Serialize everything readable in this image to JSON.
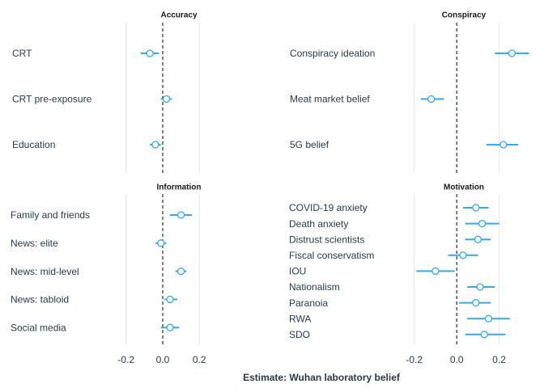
{
  "chart_data": {
    "type": "scatter",
    "xlabel": "Estimate: Wuhan laboratory belief",
    "ylabel": "",
    "x_ticks": [
      -0.2,
      0.0,
      0.2
    ],
    "x_tick_labels": [
      "-0.2",
      "0.0",
      "0.2"
    ],
    "grid": true,
    "legend": "none",
    "color": "#33aaee",
    "panels": [
      {
        "title": "Accuracy",
        "xlim": [
          -0.42,
          0.42
        ],
        "rows": [
          {
            "label": "CRT",
            "estimate": -0.07,
            "lower": -0.12,
            "upper": -0.02
          },
          {
            "label": "CRT pre-exposure",
            "estimate": 0.02,
            "lower": -0.01,
            "upper": 0.05
          },
          {
            "label": "Education",
            "estimate": -0.04,
            "lower": -0.07,
            "upper": -0.01
          }
        ]
      },
      {
        "title": "Conspiracy",
        "xlim": [
          -0.42,
          0.35
        ],
        "rows": [
          {
            "label": "Conspiracy ideation",
            "estimate": 0.26,
            "lower": 0.18,
            "upper": 0.34
          },
          {
            "label": "Meat market belief",
            "estimate": -0.12,
            "lower": -0.17,
            "upper": -0.06
          },
          {
            "label": "5G belief",
            "estimate": 0.22,
            "lower": 0.14,
            "upper": 0.29
          }
        ]
      },
      {
        "title": "Information",
        "xlim": [
          -0.42,
          0.42
        ],
        "rows": [
          {
            "label": "Family and friends",
            "estimate": 0.1,
            "lower": 0.04,
            "upper": 0.16
          },
          {
            "label": "News: elite",
            "estimate": -0.01,
            "lower": -0.04,
            "upper": 0.02
          },
          {
            "label": "News: mid-level",
            "estimate": 0.1,
            "lower": 0.07,
            "upper": 0.13
          },
          {
            "label": "News: tabloid",
            "estimate": 0.04,
            "lower": 0.01,
            "upper": 0.08
          },
          {
            "label": "Social media",
            "estimate": 0.04,
            "lower": -0.01,
            "upper": 0.09
          }
        ]
      },
      {
        "title": "Motivation",
        "xlim": [
          -0.42,
          0.35
        ],
        "rows": [
          {
            "label": "COVID-19 anxiety",
            "estimate": 0.09,
            "lower": 0.03,
            "upper": 0.15
          },
          {
            "label": "Death anxiety",
            "estimate": 0.12,
            "lower": 0.04,
            "upper": 0.2
          },
          {
            "label": "Distrust scientists",
            "estimate": 0.1,
            "lower": 0.04,
            "upper": 0.16
          },
          {
            "label": "Fiscal conservatism",
            "estimate": 0.03,
            "lower": -0.04,
            "upper": 0.1
          },
          {
            "label": "IOU",
            "estimate": -0.1,
            "lower": -0.19,
            "upper": -0.01
          },
          {
            "label": "Nationalism",
            "estimate": 0.11,
            "lower": 0.05,
            "upper": 0.18
          },
          {
            "label": "Paranoia",
            "estimate": 0.09,
            "lower": 0.01,
            "upper": 0.16
          },
          {
            "label": "RWA",
            "estimate": 0.15,
            "lower": 0.05,
            "upper": 0.25
          },
          {
            "label": "SDO",
            "estimate": 0.13,
            "lower": 0.04,
            "upper": 0.23
          }
        ]
      }
    ]
  }
}
